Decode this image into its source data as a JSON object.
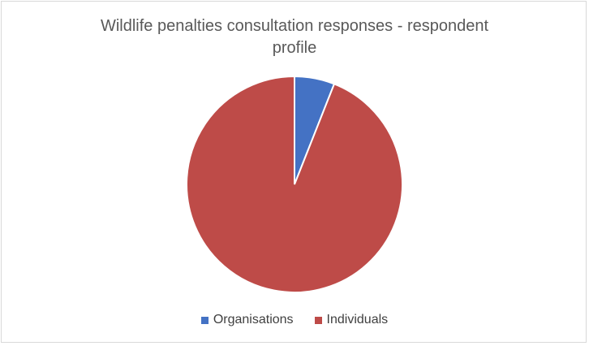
{
  "chart_data": {
    "type": "pie",
    "title_lines": [
      "Wildlife penalties consultation responses - respondent",
      "profile"
    ],
    "categories": [
      "Organisations",
      "Individuals"
    ],
    "values": [
      6,
      94
    ],
    "colors": [
      "#4472c4",
      "#be4b48"
    ],
    "legend_position": "bottom"
  }
}
